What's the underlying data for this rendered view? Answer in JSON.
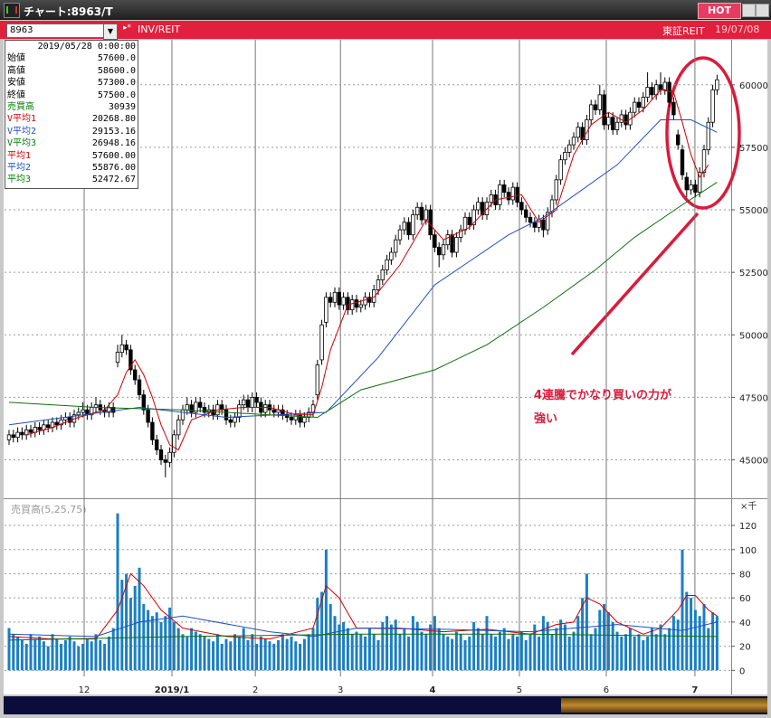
{
  "window": {
    "title": "チャート:8963/T",
    "hot": "HOT"
  },
  "toolbar": {
    "symbol": "8963",
    "name": "INV/REIT",
    "market": "東証REIT",
    "date": "19/07/08"
  },
  "info_panel": {
    "date": "2019/05/28  0:00:00",
    "rows": [
      {
        "label": "始値",
        "value": "57600.0",
        "color": "#000000"
      },
      {
        "label": "高値",
        "value": "58600.0",
        "color": "#000000"
      },
      {
        "label": "安値",
        "value": "57300.0",
        "color": "#000000"
      },
      {
        "label": "終値",
        "value": "57500.0",
        "color": "#000000"
      },
      {
        "label": "売買高",
        "value": "30939",
        "color": "#008000"
      },
      {
        "label": "V平均1",
        "value": "20268.80",
        "color": "#d00000"
      },
      {
        "label": "V平均2",
        "value": "29153.16",
        "color": "#1f50c0"
      },
      {
        "label": "V平均3",
        "value": "26948.16",
        "color": "#008000"
      },
      {
        "label": "平均1",
        "value": "57600.00",
        "color": "#d00000"
      },
      {
        "label": "平均2",
        "value": "55876.00",
        "color": "#1f50c0"
      },
      {
        "label": "平均3",
        "value": "52472.67",
        "color": "#008000"
      }
    ]
  },
  "chart_data": {
    "type": "candlestick",
    "xlim": [
      -1.04,
      166.25
    ],
    "xticks": [
      {
        "value": 17.3,
        "label": "12",
        "bold": false
      },
      {
        "value": 37.5,
        "label": "2019/1",
        "bold": true
      },
      {
        "value": 56.7,
        "label": "2",
        "bold": false
      },
      {
        "value": 76.3,
        "label": "3",
        "bold": false
      },
      {
        "value": 97.5,
        "label": "4",
        "bold": true
      },
      {
        "value": 117.5,
        "label": "5",
        "bold": false
      },
      {
        "value": 137.5,
        "label": "6",
        "bold": false
      },
      {
        "value": 157.9,
        "label": "7",
        "bold": true
      }
    ],
    "ylim": [
      43500,
      61800
    ],
    "yticks": [
      45000,
      47500,
      50000,
      52500,
      55000,
      57500,
      60000
    ],
    "grid": true,
    "up_color": "#ffffff",
    "down_color": "#000000",
    "open": [
      45800,
      46000,
      45900,
      46100,
      46000,
      46200,
      46100,
      46300,
      46200,
      46400,
      46300,
      46500,
      46400,
      46600,
      46700,
      46500,
      46800,
      46900,
      47000,
      46800,
      47100,
      47200,
      47000,
      46900,
      47100,
      48900,
      49300,
      49600,
      49400,
      48600,
      48200,
      47600,
      47000,
      46500,
      45800,
      45400,
      45000,
      44900,
      45300,
      46000,
      46600,
      47000,
      47200,
      46900,
      47300,
      47100,
      46900,
      47000,
      46800,
      47200,
      47000,
      46600,
      46500,
      46700,
      47200,
      47400,
      47100,
      47500,
      47300,
      46900,
      47200,
      47000,
      46900,
      47000,
      46800,
      46700,
      46600,
      46800,
      46500,
      46700,
      46900,
      47600,
      49000,
      50500,
      51500,
      51300,
      51700,
      51200,
      51500,
      51000,
      51400,
      51100,
      51200,
      51500,
      51300,
      51800,
      52200,
      52600,
      53000,
      53300,
      53800,
      54200,
      54500,
      54000,
      54800,
      55100,
      54600,
      55000,
      54000,
      53500,
      53200,
      53600,
      54000,
      53300,
      53900,
      54200,
      54700,
      54400,
      55000,
      55300,
      54800,
      55300,
      55600,
      55200,
      56000,
      55700,
      55400,
      55900,
      55300,
      55000,
      54700,
      54500,
      54300,
      54600,
      54200,
      54900,
      55400,
      56200,
      57000,
      57300,
      57600,
      57900,
      58300,
      57800,
      58600,
      59200,
      59000,
      59600,
      58400,
      58700,
      58200,
      58500,
      58800,
      58400,
      58900,
      59300,
      59100,
      59500,
      59900,
      59600,
      60000,
      59800,
      60100,
      59300,
      58000,
      57400,
      56300,
      55800,
      56000,
      55700,
      56500,
      57400,
      58500,
      59800
    ],
    "high": [
      46200,
      46200,
      46300,
      46300,
      46400,
      46400,
      46500,
      46500,
      46600,
      46600,
      46700,
      46700,
      46800,
      46900,
      46900,
      47000,
      47100,
      47300,
      47200,
      47300,
      47500,
      47400,
      47200,
      47300,
      47300,
      49600,
      50000,
      49800,
      49600,
      48800,
      48400,
      47800,
      47200,
      46700,
      46000,
      45600,
      45200,
      45500,
      46200,
      46800,
      47200,
      47500,
      47400,
      47500,
      47500,
      47300,
      47200,
      47200,
      47400,
      47400,
      47200,
      46800,
      46900,
      47400,
      47600,
      47600,
      47700,
      47700,
      47500,
      47400,
      47400,
      47200,
      47200,
      47200,
      47000,
      46900,
      47000,
      47000,
      46900,
      47100,
      47400,
      49000,
      50600,
      51700,
      51700,
      51900,
      51900,
      51700,
      51700,
      51600,
      51600,
      51400,
      51700,
      51700,
      52000,
      52400,
      52800,
      53200,
      53500,
      54000,
      54400,
      54700,
      54700,
      55000,
      55300,
      55300,
      55200,
      55200,
      54200,
      53700,
      53800,
      54200,
      54200,
      54100,
      54400,
      54900,
      54900,
      55200,
      55500,
      55500,
      55500,
      55800,
      55800,
      56200,
      56200,
      55900,
      56100,
      56100,
      55500,
      55200,
      54900,
      54700,
      54800,
      54800,
      55100,
      55600,
      56400,
      57200,
      57500,
      57800,
      58100,
      58500,
      58500,
      58800,
      59400,
      59400,
      60000,
      59800,
      58900,
      58900,
      58700,
      59000,
      59000,
      59100,
      59500,
      59500,
      59700,
      60500,
      60100,
      60200,
      60500,
      60300,
      60300,
      59500,
      58200,
      57600,
      56500,
      56200,
      56200,
      56700,
      57600,
      58700,
      60000,
      60400
    ],
    "low": [
      45600,
      45700,
      45700,
      45800,
      45800,
      45900,
      45900,
      46000,
      46000,
      46100,
      46100,
      46200,
      46200,
      46400,
      46300,
      46300,
      46600,
      46700,
      46600,
      46600,
      46900,
      46800,
      46700,
      46700,
      46700,
      48700,
      49100,
      49200,
      48400,
      48000,
      47400,
      46800,
      46300,
      45600,
      45200,
      44800,
      44300,
      44700,
      45100,
      45800,
      46400,
      46800,
      46700,
      46700,
      46900,
      46700,
      46700,
      46600,
      46600,
      46800,
      46400,
      46300,
      46300,
      46500,
      47000,
      46900,
      46900,
      47100,
      46700,
      46700,
      46800,
      46700,
      46700,
      46600,
      46500,
      46400,
      46400,
      46300,
      46300,
      46500,
      46700,
      47400,
      48800,
      50300,
      51100,
      51100,
      51000,
      51000,
      50800,
      50800,
      50900,
      50900,
      51000,
      51100,
      51100,
      51600,
      52000,
      52400,
      52800,
      53100,
      53600,
      54000,
      53800,
      53800,
      54600,
      54400,
      54400,
      53800,
      53300,
      52700,
      53000,
      53400,
      53100,
      53100,
      53700,
      54000,
      54200,
      54200,
      54800,
      54600,
      54600,
      55100,
      55000,
      55000,
      55500,
      55200,
      55200,
      55100,
      54800,
      54500,
      54300,
      54100,
      54100,
      53900,
      54000,
      54700,
      55200,
      56000,
      56800,
      57100,
      57400,
      57700,
      57600,
      57600,
      58400,
      58800,
      58800,
      58200,
      58200,
      58000,
      58000,
      58300,
      58200,
      58200,
      58700,
      58900,
      58900,
      59300,
      59400,
      59400,
      59600,
      59600,
      59100,
      58600,
      57400,
      56200,
      55500,
      55600,
      55500,
      55500,
      56300,
      57200,
      58300,
      59600
    ],
    "close": [
      46000,
      45900,
      46100,
      46000,
      46200,
      46100,
      46300,
      46200,
      46400,
      46300,
      46500,
      46400,
      46600,
      46700,
      46500,
      46800,
      46900,
      47000,
      46800,
      47100,
      47200,
      47000,
      46900,
      47100,
      46900,
      49300,
      49600,
      49400,
      48600,
      48200,
      47600,
      47000,
      46500,
      45800,
      45400,
      45000,
      44900,
      45300,
      46000,
      46600,
      47000,
      47200,
      46900,
      47300,
      47100,
      46900,
      47000,
      46800,
      47200,
      47000,
      46600,
      46500,
      46700,
      47200,
      47400,
      47100,
      47500,
      47300,
      46900,
      47200,
      47000,
      46900,
      47000,
      46800,
      46700,
      46600,
      46800,
      46500,
      46700,
      46900,
      47200,
      48800,
      50400,
      51500,
      51300,
      51700,
      51200,
      51500,
      51000,
      51400,
      51100,
      51200,
      51500,
      51300,
      51800,
      52200,
      52600,
      53000,
      53300,
      53800,
      54200,
      54500,
      54000,
      54800,
      55100,
      54600,
      55000,
      54000,
      53500,
      53200,
      53600,
      54000,
      53300,
      53900,
      54200,
      54700,
      54400,
      55000,
      55300,
      54800,
      55300,
      55600,
      55200,
      56000,
      55700,
      55400,
      55900,
      55300,
      55000,
      54700,
      54500,
      54300,
      54600,
      54200,
      54900,
      55400,
      56200,
      57000,
      57300,
      57600,
      57900,
      58300,
      57800,
      58600,
      59200,
      59000,
      59600,
      58400,
      58700,
      58200,
      58500,
      58800,
      58400,
      58900,
      59300,
      59100,
      59500,
      59900,
      59600,
      60000,
      59800,
      60100,
      59300,
      58800,
      57600,
      56400,
      55800,
      56000,
      55700,
      56500,
      57400,
      58500,
      59800,
      60200
    ],
    "averages": [
      {
        "color": "#d00000",
        "x": [
          4,
          10,
          16,
          22,
          25,
          27,
          29,
          31,
          33,
          35,
          37,
          39,
          42,
          48,
          54,
          60,
          66,
          70,
          72,
          74,
          78,
          84,
          90,
          96,
          100,
          106,
          112,
          118,
          122,
          126,
          130,
          134,
          138,
          142,
          146,
          150,
          153,
          155,
          157,
          159,
          161
        ],
        "values": [
          46000,
          46300,
          46700,
          47000,
          47600,
          48500,
          49000,
          48400,
          47500,
          46400,
          45600,
          45400,
          46600,
          47000,
          47100,
          47100,
          46800,
          46800,
          47900,
          49400,
          51200,
          51500,
          52800,
          54600,
          53800,
          54300,
          55400,
          55600,
          54500,
          55000,
          57200,
          58400,
          58900,
          58500,
          59000,
          59800,
          59700,
          58500,
          57200,
          56300,
          56800
        ]
      },
      {
        "color": "#1f50c0",
        "x": [
          0,
          30,
          50,
          73,
          85,
          98,
          115,
          123,
          140,
          150,
          157,
          163
        ],
        "values": [
          46400,
          47100,
          46700,
          46900,
          49100,
          52000,
          54000,
          54700,
          56800,
          58600,
          58600,
          58100
        ]
      },
      {
        "color": "#107010",
        "x": [
          0,
          20,
          40,
          60,
          71,
          81,
          98,
          110,
          123,
          135,
          144,
          155,
          163
        ],
        "values": [
          47300,
          47100,
          47000,
          46800,
          46700,
          47800,
          48600,
          49600,
          51100,
          52600,
          53900,
          55200,
          56100
        ]
      }
    ],
    "annotations": [
      "4連騰でかなり買いの力が",
      "強い"
    ],
    "volume_panel": {
      "label": "売買高(5,25,75)",
      "unit": "×千",
      "ylim": [
        -5,
        141
      ],
      "yticks": [
        0,
        20,
        40,
        60,
        80,
        100,
        120
      ],
      "color": "#1a7fc4",
      "values": [
        35,
        30,
        28,
        25,
        22,
        30,
        26,
        28,
        24,
        20,
        30,
        26,
        22,
        25,
        28,
        24,
        20,
        22,
        26,
        24,
        30,
        25,
        22,
        28,
        35,
        130,
        75,
        80,
        60,
        70,
        85,
        55,
        50,
        45,
        48,
        40,
        45,
        52,
        40,
        35,
        30,
        28,
        35,
        32,
        30,
        28,
        26,
        24,
        30,
        22,
        26,
        24,
        30,
        28,
        35,
        25,
        30,
        22,
        28,
        26,
        24,
        22,
        25,
        30,
        26,
        28,
        24,
        22,
        26,
        30,
        35,
        60,
        65,
        100,
        55,
        45,
        38,
        40,
        35,
        30,
        32,
        30,
        28,
        35,
        30,
        25,
        40,
        45,
        38,
        42,
        30,
        35,
        28,
        45,
        40,
        32,
        30,
        38,
        45,
        35,
        30,
        28,
        26,
        32,
        30,
        25,
        28,
        40,
        35,
        30,
        45,
        30,
        28,
        32,
        35,
        26,
        30,
        28,
        32,
        25,
        30,
        38,
        28,
        45,
        40,
        30,
        35,
        42,
        38,
        28,
        32,
        45,
        60,
        80,
        30,
        35,
        50,
        55,
        48,
        40,
        32,
        28,
        30,
        35,
        28,
        30,
        25,
        28,
        35,
        30,
        38,
        30,
        35,
        45,
        42,
        100,
        65,
        60,
        50,
        45,
        55,
        35,
        48,
        45
      ],
      "averages": [
        {
          "color": "#d00000",
          "x": [
            0,
            10,
            20,
            25,
            28,
            31,
            35,
            40,
            50,
            60,
            70,
            73,
            76,
            80,
            90,
            100,
            110,
            120,
            126,
            130,
            133,
            136,
            140,
            146,
            150,
            154,
            156,
            158,
            161,
            163
          ],
          "values": [
            28,
            26,
            26,
            50,
            80,
            70,
            50,
            35,
            28,
            26,
            35,
            70,
            60,
            35,
            35,
            32,
            34,
            30,
            38,
            40,
            60,
            55,
            40,
            30,
            35,
            50,
            62,
            62,
            50,
            45
          ]
        },
        {
          "color": "#1f50c0",
          "x": [
            0,
            20,
            30,
            40,
            60,
            70,
            80,
            100,
            120,
            140,
            155,
            163
          ],
          "values": [
            30,
            28,
            40,
            45,
            32,
            28,
            35,
            34,
            32,
            38,
            33,
            40
          ]
        },
        {
          "color": "#107010",
          "x": [
            0,
            40,
            80,
            120,
            163
          ],
          "values": [
            25,
            28,
            30,
            30,
            28
          ]
        }
      ]
    }
  }
}
